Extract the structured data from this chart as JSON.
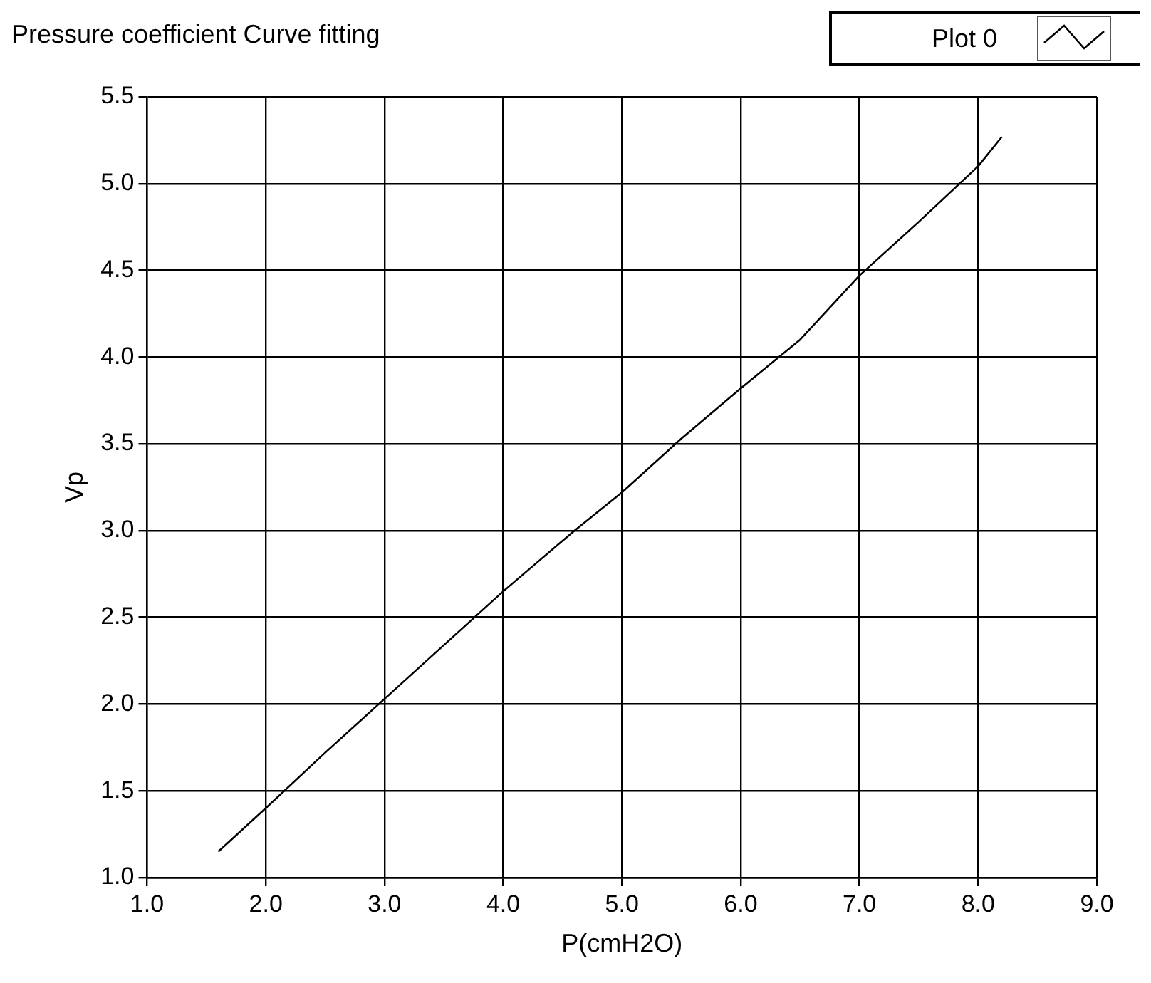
{
  "chart_data": {
    "type": "line",
    "title": "Pressure coefficient Curve fitting",
    "xlabel": "P(cmH2O)",
    "ylabel": "Vp",
    "series": [
      {
        "name": "Plot 0",
        "color": "#000000",
        "x": [
          1.6,
          2.0,
          2.5,
          3.0,
          3.5,
          4.0,
          4.6,
          5.0,
          5.5,
          6.0,
          6.5,
          7.0,
          7.5,
          8.0,
          8.2
        ],
        "values": [
          1.15,
          1.4,
          1.72,
          2.03,
          2.34,
          2.65,
          3.0,
          3.22,
          3.53,
          3.82,
          4.1,
          4.47,
          4.78,
          5.1,
          5.27
        ]
      }
    ],
    "xlim": [
      1,
      9
    ],
    "xticks": [
      {
        "value": 1,
        "label": "1.0"
      },
      {
        "value": 2,
        "label": "2.0"
      },
      {
        "value": 3,
        "label": "3.0"
      },
      {
        "value": 4,
        "label": "4.0"
      },
      {
        "value": 5,
        "label": "5.0"
      },
      {
        "value": 6,
        "label": "6.0"
      },
      {
        "value": 7,
        "label": "7.0"
      },
      {
        "value": 8,
        "label": "8.0"
      },
      {
        "value": 9,
        "label": "9.0"
      }
    ],
    "ylim": [
      1,
      5.5
    ],
    "yticks": [
      {
        "value": 1,
        "label": "1.0"
      },
      1.5,
      {
        "value": 2,
        "label": "2.0"
      },
      2.5,
      {
        "value": 3,
        "label": "3.0"
      },
      3.5,
      {
        "value": 4,
        "label": "4.0"
      },
      4.5,
      {
        "value": 5,
        "label": "5.0"
      },
      5.5
    ],
    "grid": true,
    "legend": "top right",
    "marker": "none",
    "line_style": "solid"
  }
}
